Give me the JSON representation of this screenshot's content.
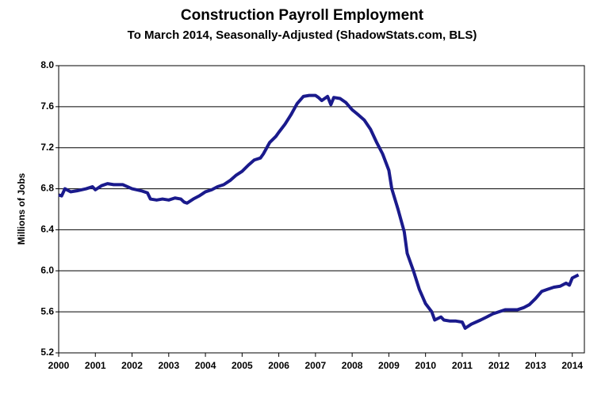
{
  "chart_data": {
    "type": "line",
    "title": "Construction Payroll Employment",
    "subtitle": "To March 2014, Seasonally-Adjusted (ShadowStats.com, BLS)",
    "y_label": "Millions  of Jobs",
    "xlim": [
      2000,
      2014.33
    ],
    "xticks": [
      2000,
      2001,
      2002,
      2003,
      2004,
      2005,
      2006,
      2007,
      2008,
      2009,
      2010,
      2011,
      2012,
      2013,
      2014
    ],
    "ylim": [
      5.2,
      8.0
    ],
    "yticks": [
      5.2,
      5.6,
      {
        "value": 6,
        "label": "6.0"
      },
      6.4,
      6.8,
      7.2,
      7.6,
      {
        "value": 8,
        "label": "8.0"
      }
    ],
    "grid": true,
    "series": [
      {
        "color": "#1a1a8c",
        "x": [
          2000.0,
          2000.08,
          2000.17,
          2000.33,
          2000.5,
          2000.75,
          2000.92,
          2001.0,
          2001.17,
          2001.33,
          2001.5,
          2001.75,
          2002.0,
          2002.25,
          2002.42,
          2002.5,
          2002.67,
          2002.83,
          2003.0,
          2003.17,
          2003.33,
          2003.42,
          2003.5,
          2003.67,
          2003.83,
          2004.0,
          2004.17,
          2004.33,
          2004.5,
          2004.67,
          2004.83,
          2005.0,
          2005.17,
          2005.33,
          2005.5,
          2005.58,
          2005.75,
          2005.92,
          2006.0,
          2006.17,
          2006.33,
          2006.5,
          2006.67,
          2006.83,
          2007.0,
          2007.08,
          2007.17,
          2007.33,
          2007.42,
          2007.5,
          2007.67,
          2007.83,
          2008.0,
          2008.17,
          2008.33,
          2008.5,
          2008.67,
          2008.83,
          2009.0,
          2009.08,
          2009.25,
          2009.42,
          2009.5,
          2009.67,
          2009.83,
          2010.0,
          2010.17,
          2010.25,
          2010.42,
          2010.5,
          2010.67,
          2010.83,
          2011.0,
          2011.08,
          2011.25,
          2011.5,
          2011.67,
          2011.83,
          2012.0,
          2012.17,
          2012.33,
          2012.5,
          2012.67,
          2012.83,
          2013.0,
          2013.17,
          2013.33,
          2013.5,
          2013.67,
          2013.83,
          2013.92,
          2014.0,
          2014.17
        ],
        "values": [
          6.74,
          6.73,
          6.8,
          6.77,
          6.78,
          6.8,
          6.82,
          6.79,
          6.83,
          6.85,
          6.84,
          6.84,
          6.8,
          6.78,
          6.76,
          6.7,
          6.69,
          6.7,
          6.69,
          6.71,
          6.7,
          6.67,
          6.66,
          6.7,
          6.73,
          6.77,
          6.79,
          6.82,
          6.84,
          6.88,
          6.93,
          6.97,
          7.03,
          7.08,
          7.1,
          7.14,
          7.25,
          7.31,
          7.35,
          7.43,
          7.52,
          7.63,
          7.7,
          7.71,
          7.71,
          7.69,
          7.66,
          7.7,
          7.62,
          7.69,
          7.68,
          7.64,
          7.57,
          7.52,
          7.47,
          7.38,
          7.25,
          7.14,
          6.98,
          6.8,
          6.6,
          6.38,
          6.17,
          6.0,
          5.82,
          5.68,
          5.6,
          5.52,
          5.55,
          5.52,
          5.51,
          5.51,
          5.5,
          5.44,
          5.48,
          5.52,
          5.55,
          5.58,
          5.6,
          5.62,
          5.62,
          5.62,
          5.64,
          5.67,
          5.73,
          5.8,
          5.82,
          5.84,
          5.85,
          5.88,
          5.86,
          5.93,
          5.96
        ]
      }
    ]
  }
}
